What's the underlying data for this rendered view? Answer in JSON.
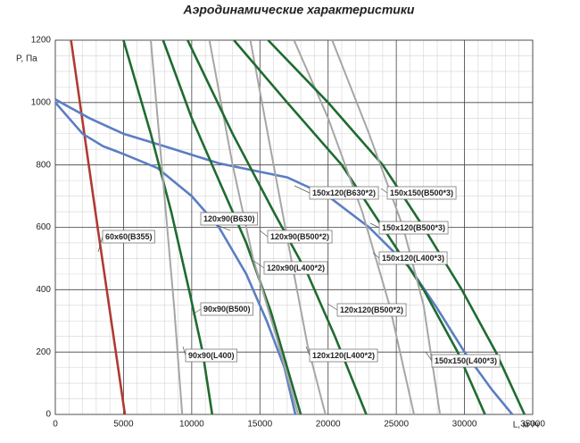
{
  "chart_data": {
    "type": "line",
    "title": "Аэродинамические характеристики",
    "y_label": "P, Па",
    "x_label": "L, м³/ч",
    "xlim": [
      0,
      35000
    ],
    "xticks": [
      0,
      5000,
      10000,
      15000,
      20000,
      25000,
      30000,
      35000
    ],
    "ylim": [
      0,
      1200
    ],
    "yticks": [
      0,
      200,
      400,
      600,
      800,
      1000,
      1200
    ],
    "grid": true,
    "series": [
      {
        "name": "60x60(B355)",
        "color": "#b03a32",
        "x": [
          1150,
          3100,
          5100
        ],
        "values": [
          1200,
          600,
          0
        ]
      },
      {
        "name": "120x90(B630)",
        "color": "#5b7ec4",
        "x": [
          0,
          1000,
          2000,
          3500,
          5000,
          7500,
          10000,
          12000,
          14000,
          15500,
          16800,
          17600
        ],
        "values": [
          1000,
          950,
          900,
          860,
          835,
          790,
          700,
          600,
          450,
          300,
          150,
          0
        ]
      },
      {
        "name": "150x120(B630*2)",
        "color": "#5b7ec4",
        "x": [
          0,
          2500,
          5000,
          8000,
          12000,
          17000,
          20000,
          23000,
          26000,
          28000,
          30000,
          32000,
          33500
        ],
        "values": [
          1010,
          950,
          900,
          860,
          805,
          760,
          700,
          600,
          470,
          340,
          200,
          80,
          0
        ]
      },
      {
        "name": "90x90(B500)",
        "color": "#1f6b30",
        "x": [
          5000,
          7000,
          8500,
          9800,
          10800,
          11500
        ],
        "values": [
          1200,
          900,
          650,
          400,
          200,
          0
        ]
      },
      {
        "name": "90x90(L400)",
        "color": "#a6a6a6",
        "x": [
          7000,
          8000,
          8700,
          9300
        ],
        "values": [
          1200,
          700,
          350,
          0
        ]
      },
      {
        "name": "120x90(B500*2)",
        "color": "#1f6b30",
        "x": [
          7900,
          10000,
          12000,
          14000,
          15800,
          17000,
          18000
        ],
        "values": [
          1200,
          950,
          750,
          550,
          330,
          150,
          0
        ]
      },
      {
        "name": "120x90(L400*2)",
        "color": "#a6a6a6",
        "x": [
          11300,
          13000,
          14500,
          16200,
          17800
        ],
        "values": [
          1200,
          800,
          500,
          250,
          0
        ]
      },
      {
        "name": "120x120(B500*2)",
        "color": "#1f6b30",
        "x": [
          9700,
          13000,
          16000,
          18500,
          20500,
          22800
        ],
        "values": [
          1200,
          900,
          650,
          450,
          250,
          0
        ]
      },
      {
        "name": "120x120(L400*2)",
        "color": "#a6a6a6",
        "x": [
          14300,
          16000,
          17500,
          18500,
          19800
        ],
        "values": [
          1200,
          800,
          450,
          220,
          0
        ]
      },
      {
        "name": "150x120(B500*3)",
        "color": "#1f6b30",
        "x": [
          13100,
          17000,
          21000,
          24000,
          27000,
          29500,
          31500
        ],
        "values": [
          1200,
          1000,
          800,
          600,
          400,
          200,
          0
        ]
      },
      {
        "name": "150x120(L400*3)",
        "color": "#a6a6a6",
        "x": [
          17500,
          20000,
          22500,
          24500,
          26300
        ],
        "values": [
          1200,
          950,
          650,
          350,
          0
        ]
      },
      {
        "name": "150x150(B500*3)",
        "color": "#1f6b30",
        "x": [
          15600,
          20000,
          24000,
          27000,
          29800,
          32300,
          34400
        ],
        "values": [
          1200,
          1000,
          800,
          600,
          400,
          200,
          0
        ]
      },
      {
        "name": "150x150(L400*3)",
        "color": "#a6a6a6",
        "x": [
          20300,
          23000,
          25500,
          27000,
          28200
        ],
        "values": [
          1200,
          900,
          600,
          350,
          0
        ]
      }
    ]
  }
}
